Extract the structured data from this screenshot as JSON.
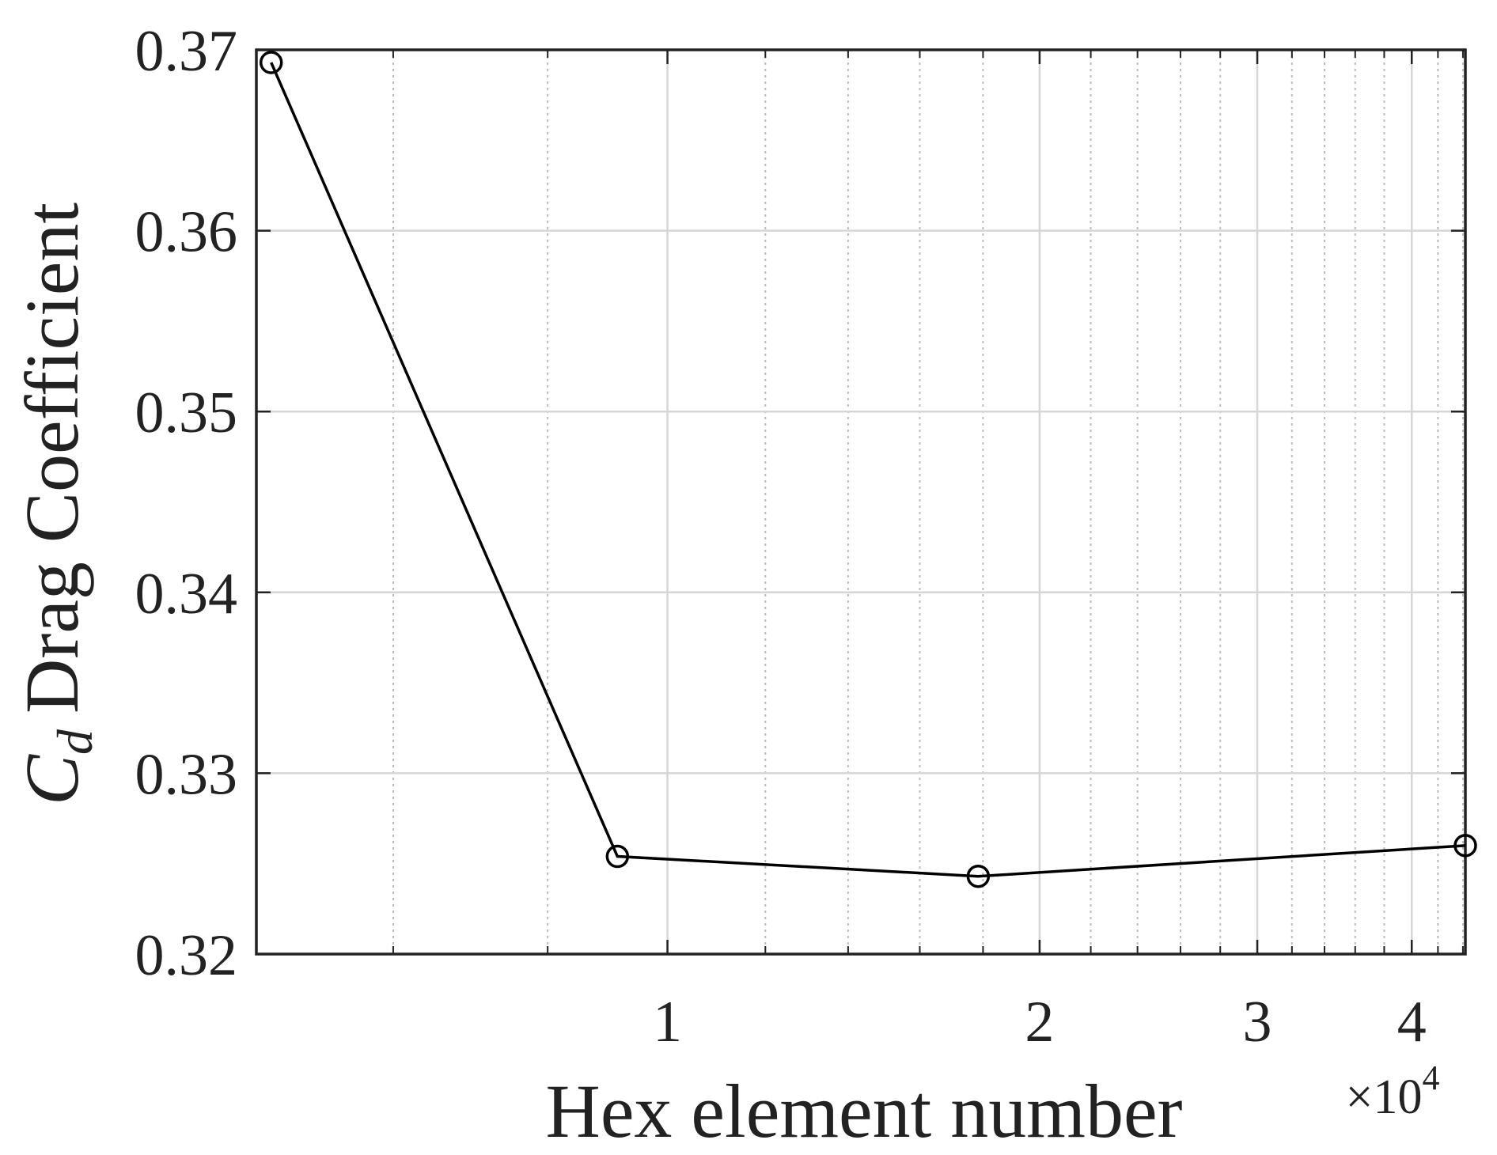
{
  "chart_data": {
    "type": "line",
    "xlabel": "Hex element number",
    "x_multiplier": {
      "base": "×10",
      "exponent": "4"
    },
    "ylabel": {
      "symbol": "C",
      "subscript": "d",
      "text": "Drag Coefficient"
    },
    "xscale": "log",
    "x": [
      4780,
      9110,
      17840,
      44200
    ],
    "series": [
      {
        "color": "#000000",
        "marker": "circle",
        "values": [
          0.3693,
          0.3254,
          0.3243,
          0.326
        ]
      }
    ],
    "xlim": [
      4650,
      44200
    ],
    "ylim": [
      0.32,
      0.37
    ],
    "xticks": [
      {
        "value": 10000,
        "label": "1"
      },
      {
        "value": 20000,
        "label": "2"
      },
      {
        "value": 30000,
        "label": "3"
      },
      {
        "value": 40000,
        "label": "4"
      }
    ],
    "minor_xticks": [
      6000,
      8000,
      12000,
      14000,
      16000,
      18000,
      22000,
      24000,
      26000,
      28000,
      32000,
      34000,
      36000,
      38000,
      42000,
      44000
    ],
    "yticks": [
      0.32,
      0.33,
      0.34,
      0.35,
      0.36,
      0.37
    ],
    "grid": true
  }
}
